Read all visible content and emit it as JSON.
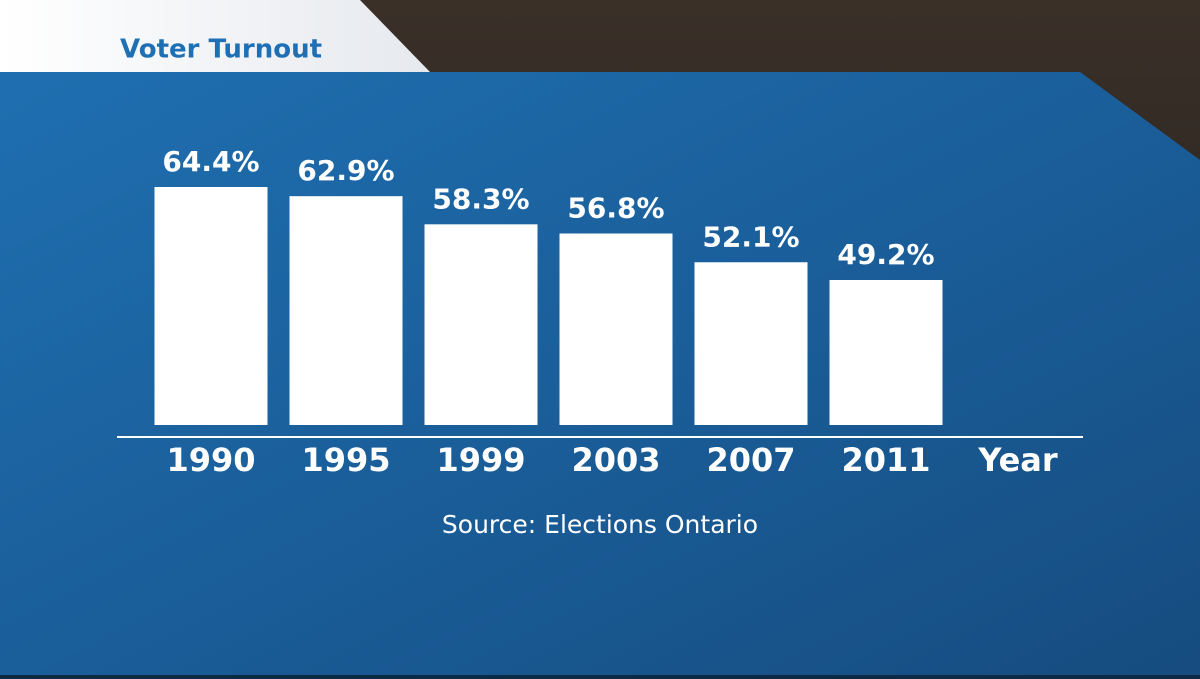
{
  "chart_data": {
    "type": "bar",
    "title": "Voter Turnout",
    "x_label": "Year",
    "source": "Source: Elections Ontario",
    "categories": [
      "1990",
      "1995",
      "1999",
      "2003",
      "2007",
      "2011"
    ],
    "values": [
      64.4,
      62.9,
      58.3,
      56.8,
      52.1,
      49.2
    ],
    "value_labels": [
      "64.4%",
      "62.9%",
      "58.3%",
      "56.8%",
      "52.1%",
      "49.2%"
    ],
    "color": "#ffffff"
  }
}
